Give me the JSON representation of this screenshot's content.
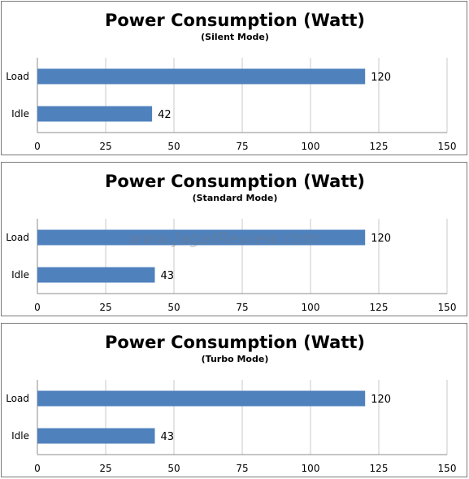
{
  "colors": {
    "bar": "#4f81bd"
  },
  "watermark": "www.JagatReview.com",
  "chart_data": [
    {
      "type": "bar",
      "orientation": "horizontal",
      "title": "Power Consumption (Watt)",
      "subtitle": "(Silent Mode)",
      "categories": [
        "Load",
        "Idle"
      ],
      "values": [
        120,
        42
      ],
      "xlim": [
        0,
        150
      ],
      "xticks": [
        0,
        25,
        50,
        75,
        100,
        125,
        150
      ],
      "grid": true,
      "legend": "none"
    },
    {
      "type": "bar",
      "orientation": "horizontal",
      "title": "Power Consumption (Watt)",
      "subtitle": "(Standard Mode)",
      "categories": [
        "Load",
        "Idle"
      ],
      "values": [
        120,
        43
      ],
      "xlim": [
        0,
        150
      ],
      "xticks": [
        0,
        25,
        50,
        75,
        100,
        125,
        150
      ],
      "grid": true,
      "legend": "none"
    },
    {
      "type": "bar",
      "orientation": "horizontal",
      "title": "Power Consumption (Watt)",
      "subtitle": "(Turbo Mode)",
      "categories": [
        "Load",
        "Idle"
      ],
      "values": [
        120,
        43
      ],
      "xlim": [
        0,
        150
      ],
      "xticks": [
        0,
        25,
        50,
        75,
        100,
        125,
        150
      ],
      "grid": true,
      "legend": "none"
    }
  ]
}
